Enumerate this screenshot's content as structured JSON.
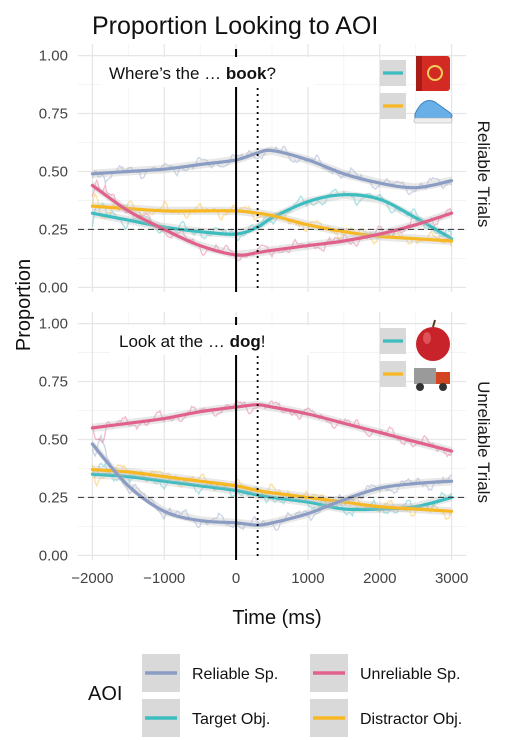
{
  "chart_data": {
    "type": "line",
    "title": "Proportion Looking to AOI",
    "xlabel": "Time (ms)",
    "ylabel": "Proportion",
    "xlim": [
      -2200,
      3200
    ],
    "ylim": [
      -0.02,
      1.05
    ],
    "x_ticks": [
      -2000,
      -1000,
      0,
      1000,
      2000,
      3000
    ],
    "x_tick_labels": [
      "−2000",
      "−1000",
      "0",
      "1000",
      "2000",
      "3000"
    ],
    "y_ticks": [
      0,
      0.25,
      0.5,
      0.75,
      1.0
    ],
    "y_tick_labels": [
      "0.00",
      "0.25",
      "0.50",
      "0.75",
      "1.00"
    ],
    "chance_level": 0.25,
    "onset_line_x": 0,
    "offset_line_x": 300,
    "legend": {
      "title": "AOI",
      "entries": [
        {
          "name": "Reliable Sp.",
          "color": "#8C9DC4"
        },
        {
          "name": "Unreliable Sp.",
          "color": "#E0628A"
        },
        {
          "name": "Target Obj.",
          "color": "#3DBDC0"
        },
        {
          "name": "Distractor Obj.",
          "color": "#F7B824"
        }
      ]
    },
    "panels": [
      {
        "strip": "Reliable Trials",
        "annotation_prefix": "Where’s the … ",
        "annotation_word": "book",
        "annotation_suffix": "?",
        "target_icon": "red-book-icon",
        "distractor_icon": "blue-shoe-icon",
        "x": [
          -2000,
          -1500,
          -1000,
          -500,
          0,
          300,
          500,
          1000,
          1500,
          2000,
          2500,
          3000
        ],
        "series": [
          {
            "name": "Reliable Sp.",
            "color": "#8C9DC4",
            "values": [
              0.49,
              0.5,
              0.51,
              0.53,
              0.55,
              0.58,
              0.59,
              0.55,
              0.49,
              0.45,
              0.43,
              0.46
            ]
          },
          {
            "name": "Target Obj.",
            "color": "#3DBDC0",
            "values": [
              0.32,
              0.29,
              0.26,
              0.24,
              0.23,
              0.26,
              0.3,
              0.37,
              0.4,
              0.38,
              0.3,
              0.21
            ]
          },
          {
            "name": "Distractor Obj.",
            "color": "#F7B824",
            "values": [
              0.35,
              0.34,
              0.33,
              0.33,
              0.33,
              0.32,
              0.31,
              0.27,
              0.24,
              0.22,
              0.21,
              0.2
            ]
          },
          {
            "name": "Unreliable Sp.",
            "color": "#E0628A",
            "values": [
              0.44,
              0.33,
              0.25,
              0.18,
              0.14,
              0.15,
              0.16,
              0.18,
              0.2,
              0.23,
              0.27,
              0.32
            ]
          }
        ]
      },
      {
        "strip": "Unreliable Trials",
        "annotation_prefix": "Look at the … ",
        "annotation_word": "dog",
        "annotation_suffix": "!",
        "target_icon": "red-apple-icon",
        "distractor_icon": "toy-truck-icon",
        "x": [
          -2000,
          -1500,
          -1000,
          -500,
          0,
          300,
          500,
          1000,
          1500,
          2000,
          2500,
          3000
        ],
        "series": [
          {
            "name": "Unreliable Sp.",
            "color": "#E0628A",
            "values": [
              0.55,
              0.57,
              0.59,
              0.62,
              0.64,
              0.65,
              0.64,
              0.61,
              0.57,
              0.53,
              0.49,
              0.45
            ]
          },
          {
            "name": "Target Obj.",
            "color": "#3DBDC0",
            "values": [
              0.35,
              0.34,
              0.32,
              0.3,
              0.28,
              0.26,
              0.25,
              0.23,
              0.2,
              0.2,
              0.21,
              0.25
            ]
          },
          {
            "name": "Distractor Obj.",
            "color": "#F7B824",
            "values": [
              0.37,
              0.36,
              0.34,
              0.32,
              0.3,
              0.28,
              0.27,
              0.25,
              0.23,
              0.21,
              0.2,
              0.19
            ]
          },
          {
            "name": "Reliable Sp.",
            "color": "#8C9DC4",
            "values": [
              0.48,
              0.3,
              0.19,
              0.15,
              0.14,
              0.13,
              0.14,
              0.18,
              0.24,
              0.29,
              0.31,
              0.32
            ]
          }
        ]
      }
    ]
  }
}
